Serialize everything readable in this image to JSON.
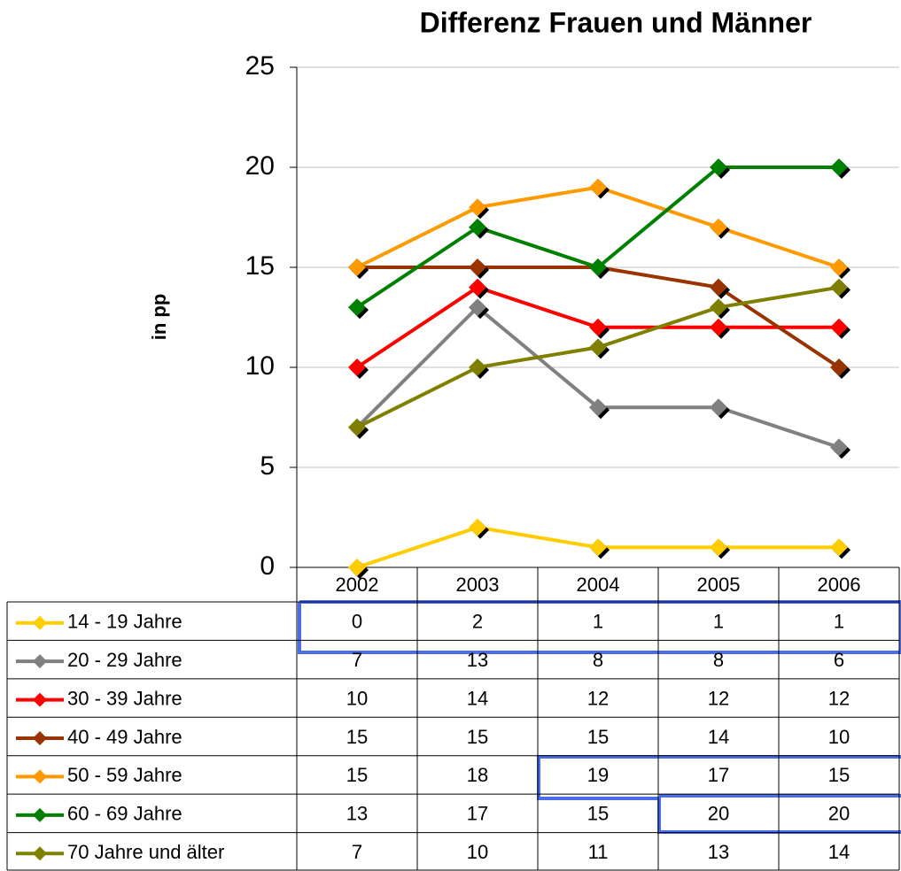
{
  "chart_data": {
    "type": "line",
    "title": "Differenz Frauen und Männer",
    "y_label": "in pp",
    "categories": [
      "2002",
      "2003",
      "2004",
      "2005",
      "2006"
    ],
    "ylim": [
      0,
      25
    ],
    "yticks": [
      0,
      5,
      10,
      15,
      20,
      25
    ],
    "grid": true,
    "series": [
      {
        "name": "14 - 19 Jahre",
        "color": "#ffcc00",
        "values": [
          0,
          2,
          1,
          1,
          1
        ]
      },
      {
        "name": "20 - 29 Jahre",
        "color": "#808080",
        "values": [
          7,
          13,
          8,
          8,
          6
        ]
      },
      {
        "name": "30 - 39 Jahre",
        "color": "#ff0000",
        "values": [
          10,
          14,
          12,
          12,
          12
        ]
      },
      {
        "name": "40 - 49 Jahre",
        "color": "#993300",
        "values": [
          15,
          15,
          15,
          14,
          10
        ]
      },
      {
        "name": "50 - 59 Jahre",
        "color": "#ff9900",
        "values": [
          15,
          18,
          19,
          17,
          15
        ]
      },
      {
        "name": "60 - 69 Jahre",
        "color": "#008000",
        "values": [
          13,
          17,
          15,
          20,
          20
        ]
      },
      {
        "name": "70 Jahre und älter",
        "color": "#808000",
        "values": [
          7,
          10,
          11,
          13,
          14
        ]
      }
    ]
  }
}
